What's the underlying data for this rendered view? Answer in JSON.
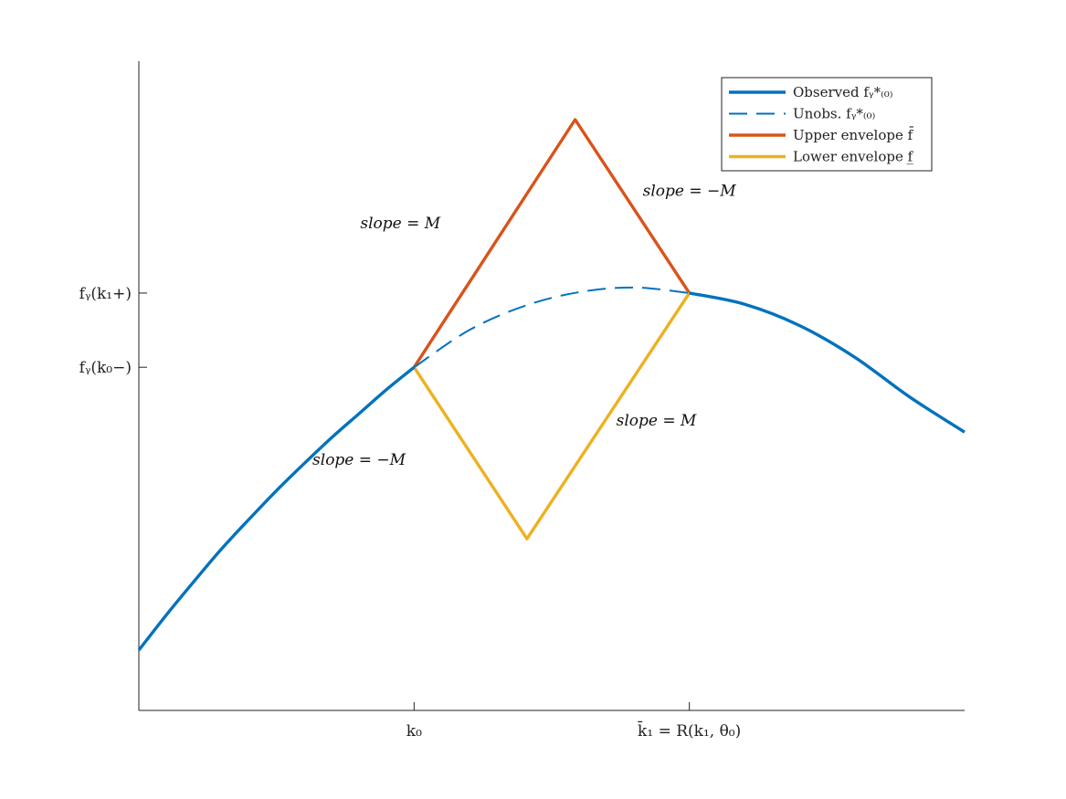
{
  "chart_data": {
    "type": "line",
    "title": "",
    "xlabel": "",
    "ylabel": "",
    "xlim": [
      0,
      3
    ],
    "ylim": [
      0,
      7
    ],
    "grid": false,
    "legend_position": "top-right",
    "colors": {
      "observed": "#0072BD",
      "upper": "#D95319",
      "lower": "#EDB120",
      "axis": "#222222"
    },
    "x_ticks": [
      {
        "value": 1,
        "label": "k₀"
      },
      {
        "value": 2,
        "label": "k̄₁ = R(k₁, θ₀)"
      }
    ],
    "y_ticks": [
      {
        "value": 3.7,
        "label": "fᵧ(k₀−)"
      },
      {
        "value": 4.5,
        "label": "fᵧ(k₁+)"
      }
    ],
    "series": [
      {
        "name": "Observed fᵧ*₍₀₎",
        "style": "solid",
        "color": "#0072BD",
        "x": [
          0,
          0.1,
          0.2,
          0.3,
          0.4,
          0.5,
          0.6,
          0.7,
          0.8,
          0.9,
          1.0
        ],
        "y": [
          0.65,
          1.03,
          1.39,
          1.74,
          2.06,
          2.37,
          2.66,
          2.94,
          3.2,
          3.46,
          3.7
        ]
      },
      {
        "name": "Unobs. fᵧ*₍₀₎",
        "style": "dashed",
        "color": "#0072BD",
        "x": [
          1.0,
          1.2,
          1.4,
          1.6,
          1.8,
          2.0
        ],
        "y": [
          3.7,
          4.1,
          4.36,
          4.51,
          4.56,
          4.5
        ]
      },
      {
        "name": "",
        "style": "solid",
        "color": "#0072BD",
        "x": [
          2.0,
          2.2,
          2.4,
          2.6,
          2.8,
          3.0
        ],
        "y": [
          4.5,
          4.38,
          4.15,
          3.81,
          3.38,
          3.0
        ]
      },
      {
        "name": "Upper envelope f̄",
        "style": "solid",
        "color": "#D95319",
        "x": [
          1.0,
          1.585,
          2.0
        ],
        "y": [
          3.7,
          6.37,
          4.5
        ]
      },
      {
        "name": "Lower envelope f̲",
        "style": "solid",
        "color": "#EDB120",
        "x": [
          1.0,
          1.41,
          2.0
        ],
        "y": [
          3.7,
          1.85,
          4.5
        ]
      }
    ],
    "annotations": [
      {
        "text": "slope = M",
        "x": 0.95,
        "y": 5.2
      },
      {
        "text": "slope = −M",
        "x": 2.0,
        "y": 5.55
      },
      {
        "text": "slope = −M",
        "x": 0.8,
        "y": 2.65
      },
      {
        "text": "slope = M",
        "x": 1.88,
        "y": 3.07
      }
    ]
  }
}
